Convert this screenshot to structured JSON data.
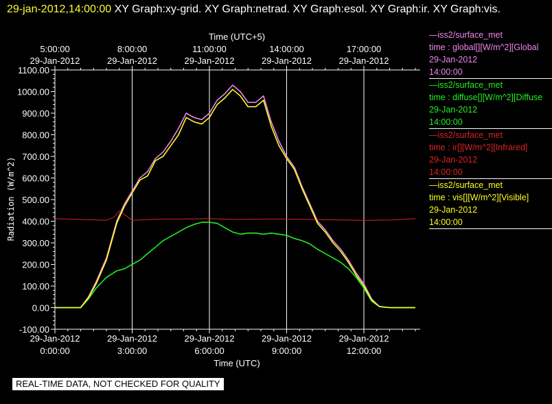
{
  "header": {
    "timestamp": "29-jan-2012,14:00:00",
    "graphs_text": "  XY Graph:xy-grid.  XY Graph:netrad.  XY Graph:esol.  XY Graph:ir.  XY Graph:vis."
  },
  "colors": {
    "background": "#000000",
    "timestamp": "#ffff33",
    "global": "#ee88ee",
    "diffuse": "#22ee22",
    "ir": "#dd2222",
    "vis": "#ffff22",
    "grid": "#ffffff"
  },
  "legend": [
    {
      "line1": "—iss2/surface_met",
      "line2": "time : global[][W/m^2][Global",
      "line3": "29-Jan-2012",
      "line4": "14:00:00",
      "color": "#ee88ee"
    },
    {
      "line1": "—iss2/surface_met",
      "line2": "time : diffuse[][W/m^2][Diffuse",
      "line3": "29-Jan-2012",
      "line4": "14:00:00",
      "color": "#22ee22"
    },
    {
      "line1": "—iss2/surface_met",
      "line2": "time : ir[][W/m^2][Infrared]",
      "line3": "29-Jan-2012",
      "line4": "14:00:00",
      "color": "#dd2222"
    },
    {
      "line1": "—iss2/surface_met",
      "line2": "time : vis[][W/m^2][Visible]",
      "line3": "29-Jan-2012",
      "line4": "14:00:00",
      "color": "#ffff22"
    }
  ],
  "footer_note": "REAL-TIME DATA, NOT CHECKED FOR QUALITY",
  "chart_data": {
    "type": "line",
    "top_axis_title": "Time (UTC+5)",
    "top_ticks": [
      {
        "time": "5:00:00",
        "date": "29-Jan-2012",
        "x_hours": 0
      },
      {
        "time": "8:00:00",
        "date": "29-Jan-2012",
        "x_hours": 3
      },
      {
        "time": "11:00:00",
        "date": "29-Jan-2012",
        "x_hours": 6
      },
      {
        "time": "14:00:00",
        "date": "29-Jan-2012",
        "x_hours": 9
      },
      {
        "time": "17:00:00",
        "date": "29-Jan-2012",
        "x_hours": 12
      }
    ],
    "xlabel": "Time (UTC)",
    "bottom_ticks": [
      {
        "date": "29-Jan-2012",
        "time": "0:00:00",
        "x_hours": 0
      },
      {
        "date": "29-Jan-2012",
        "time": "3:00:00",
        "x_hours": 3
      },
      {
        "date": "29-Jan-2012",
        "time": "6:00:00",
        "x_hours": 6
      },
      {
        "date": "29-Jan-2012",
        "time": "9:00:00",
        "x_hours": 9
      },
      {
        "date": "29-Jan-2012",
        "time": "12:00:00",
        "x_hours": 12
      }
    ],
    "ylabel": "Radiation (W/m^2)",
    "yticks": [
      "-100.00",
      "0.00",
      "100.00",
      "200.00",
      "300.00",
      "400.00",
      "500.00",
      "600.00",
      "700.00",
      "800.00",
      "900.00",
      "1000.00",
      "1100.00"
    ],
    "ytick_values": [
      -100,
      0,
      100,
      200,
      300,
      400,
      500,
      600,
      700,
      800,
      900,
      1000,
      1100
    ],
    "xlim_hours": [
      0,
      14.0
    ],
    "ylim": [
      -100,
      1100
    ],
    "grid": "vertical lines at major x ticks",
    "series": [
      {
        "key": "global",
        "color": "#ee88ee",
        "x": [
          0,
          1.0,
          1.3,
          1.6,
          2.0,
          2.4,
          2.7,
          3.0,
          3.3,
          3.6,
          3.9,
          4.2,
          4.5,
          4.8,
          5.1,
          5.4,
          5.7,
          6.0,
          6.3,
          6.6,
          6.9,
          7.2,
          7.5,
          7.8,
          8.1,
          8.4,
          8.7,
          9.0,
          9.3,
          9.6,
          9.9,
          10.2,
          10.5,
          10.8,
          11.1,
          11.4,
          11.7,
          12.0,
          12.3,
          12.6,
          13.0,
          14.0
        ],
        "y": [
          0,
          0,
          50,
          120,
          230,
          400,
          480,
          540,
          600,
          630,
          690,
          720,
          770,
          830,
          900,
          880,
          870,
          900,
          960,
          990,
          1030,
          1000,
          950,
          950,
          980,
          860,
          770,
          700,
          650,
          560,
          480,
          400,
          360,
          310,
          270,
          220,
          160,
          110,
          40,
          5,
          0,
          0
        ]
      },
      {
        "key": "diffuse",
        "color": "#22ee22",
        "x": [
          0,
          1.0,
          1.3,
          1.6,
          2.0,
          2.4,
          2.7,
          3.0,
          3.3,
          3.6,
          3.9,
          4.2,
          4.5,
          4.8,
          5.1,
          5.4,
          5.7,
          6.0,
          6.3,
          6.6,
          6.9,
          7.2,
          7.5,
          7.8,
          8.1,
          8.4,
          8.7,
          9.0,
          9.3,
          9.6,
          9.9,
          10.2,
          10.5,
          10.8,
          11.1,
          11.4,
          11.7,
          12.0,
          12.3,
          12.6,
          13.0,
          14.0
        ],
        "y": [
          0,
          0,
          40,
          90,
          140,
          170,
          180,
          200,
          220,
          250,
          280,
          310,
          330,
          350,
          370,
          385,
          395,
          395,
          390,
          370,
          350,
          340,
          345,
          345,
          340,
          345,
          340,
          335,
          320,
          310,
          295,
          270,
          250,
          230,
          210,
          180,
          140,
          90,
          30,
          5,
          0,
          0
        ]
      },
      {
        "key": "ir",
        "color": "#dd2222",
        "x": [
          0,
          1,
          2,
          2.3,
          2.5,
          3,
          4,
          5,
          6,
          7,
          8,
          9,
          10,
          11,
          12,
          13,
          14
        ],
        "y": [
          412,
          408,
          404,
          420,
          448,
          404,
          410,
          410,
          412,
          408,
          410,
          410,
          408,
          406,
          404,
          405,
          412
        ]
      },
      {
        "key": "vis",
        "color": "#ffff22",
        "x": [
          0,
          1.0,
          1.3,
          1.6,
          2.0,
          2.4,
          2.7,
          3.0,
          3.3,
          3.6,
          3.9,
          4.2,
          4.5,
          4.8,
          5.1,
          5.4,
          5.7,
          6.0,
          6.3,
          6.6,
          6.9,
          7.2,
          7.5,
          7.8,
          8.1,
          8.4,
          8.7,
          9.0,
          9.3,
          9.6,
          9.9,
          10.2,
          10.5,
          10.8,
          11.1,
          11.4,
          11.7,
          12.0,
          12.3,
          12.6,
          13.0,
          14.0
        ],
        "y": [
          0,
          0,
          45,
          110,
          220,
          390,
          470,
          530,
          590,
          610,
          680,
          700,
          750,
          800,
          880,
          860,
          850,
          880,
          940,
          970,
          1010,
          980,
          930,
          930,
          960,
          840,
          750,
          690,
          640,
          550,
          470,
          390,
          350,
          300,
          260,
          210,
          150,
          100,
          35,
          5,
          0,
          0
        ]
      }
    ]
  }
}
